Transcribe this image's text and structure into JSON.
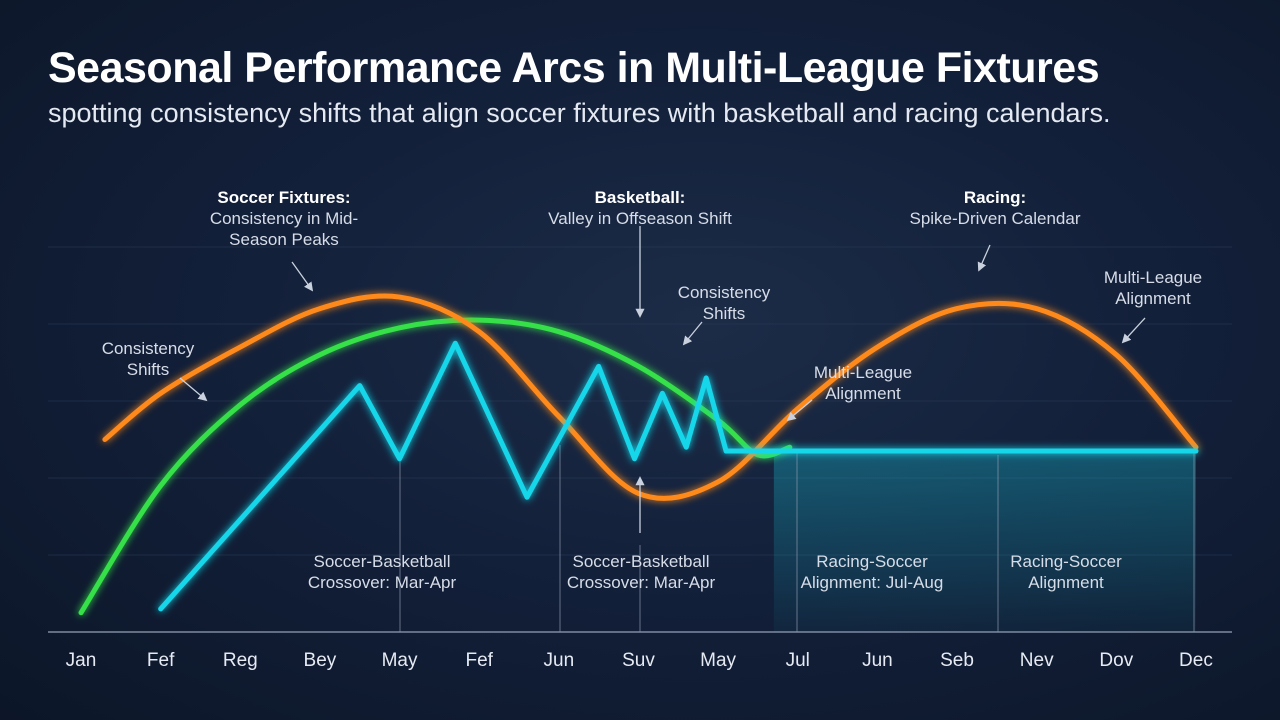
{
  "title": "Seasonal Performance Arcs in Multi-League Fixtures",
  "subtitle": "spotting consistency shifts that align soccer fixtures with basketball and racing calendars.",
  "chart_data": {
    "type": "line",
    "x_ticks": [
      "Jan",
      "Fef",
      "Reg",
      "Bey",
      "May",
      "Fef",
      "Jun",
      "Suv",
      "May",
      "Jul",
      "Jun",
      "Seb",
      "Nev",
      "Dov",
      "Dec"
    ],
    "ylim": [
      0,
      100
    ],
    "grid": true,
    "colors": {
      "soccer": "#ff8a1f",
      "basketball": "#35e04a",
      "racing": "#16d6ea"
    },
    "series": [
      {
        "key": "soccer",
        "x": [
          1.3,
          2.0,
          3.0,
          4.0,
          5.0,
          6.0,
          7.0,
          8.0,
          9.0,
          10.0,
          11.0,
          12.0,
          13.0,
          14.0,
          15.0
        ],
        "values": [
          50,
          62,
          74,
          84,
          87,
          78,
          56,
          36,
          39,
          58,
          74,
          84,
          84,
          72,
          48
        ]
      },
      {
        "key": "basketball",
        "x": [
          1.0,
          2.0,
          3.0,
          4.0,
          5.0,
          6.0,
          7.0,
          8.0,
          9.0,
          9.5,
          9.9
        ],
        "values": [
          5,
          38,
          59,
          72,
          79,
          81,
          78,
          69,
          55,
          46,
          48
        ]
      },
      {
        "key": "racing",
        "x": [
          2.0,
          4.5,
          5.0,
          5.7,
          6.6,
          7.5,
          7.95,
          8.3,
          8.6,
          8.85,
          9.1,
          9.7,
          15.0
        ],
        "values": [
          6,
          64,
          45,
          75,
          35,
          69,
          45,
          62,
          48,
          66,
          47,
          47,
          47
        ]
      }
    ],
    "annotations": [
      {
        "bold": "Soccer Fixtures:",
        "lines": [
          "Consistency in Mid-",
          "Season Peaks"
        ]
      },
      {
        "bold": "Basketball:",
        "lines": [
          "Valley in Offseason Shift"
        ]
      },
      {
        "bold": "Racing:",
        "lines": [
          "Spike-Driven Calendar"
        ]
      },
      {
        "bold": "",
        "lines": [
          "Multi-League",
          "Alignment"
        ]
      },
      {
        "bold": "",
        "lines": [
          "Consistency",
          "Shifts"
        ]
      },
      {
        "bold": "",
        "lines": [
          "Consistency",
          "Shifts"
        ]
      },
      {
        "bold": "",
        "lines": [
          "Multi-League",
          "Alignment"
        ]
      },
      {
        "bold": "",
        "lines": [
          "Soccer-Basketball",
          "Crossover: Mar-Apr"
        ]
      },
      {
        "bold": "",
        "lines": [
          "Soccer-Basketball",
          "Crossover: Mar-Apr"
        ]
      },
      {
        "bold": "",
        "lines": [
          "Racing-Soccer",
          "Alignment: Jul-Aug"
        ]
      },
      {
        "bold": "",
        "lines": [
          "Racing-Soccer",
          "Alignment"
        ]
      }
    ]
  }
}
